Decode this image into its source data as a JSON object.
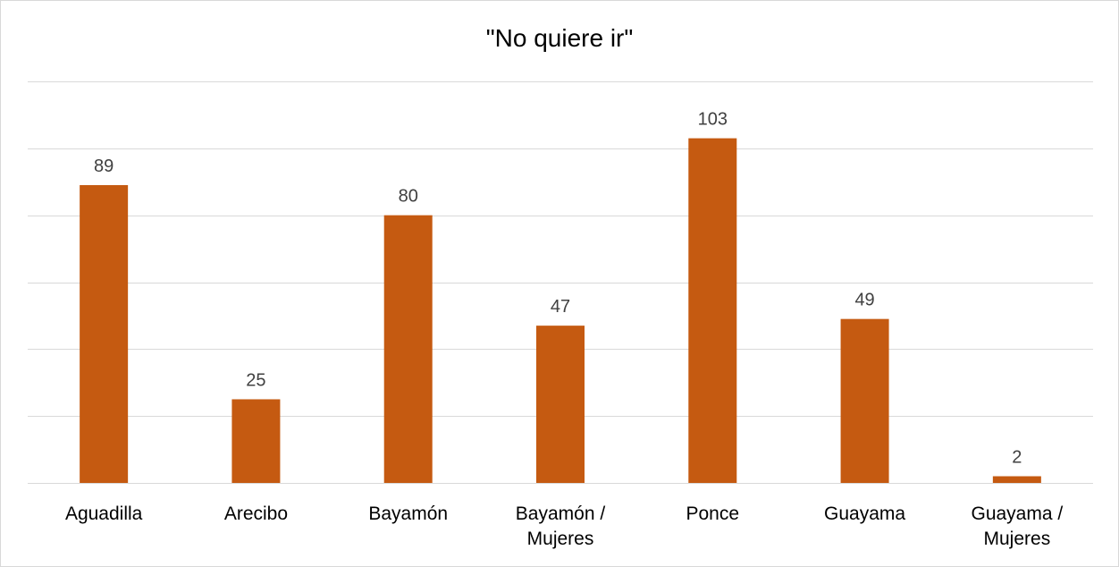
{
  "chart_data": {
    "type": "bar",
    "title": "\"No quiere ir\"",
    "categories": [
      "Aguadilla",
      "Arecibo",
      "Bayamón",
      "Bayamón / Mujeres",
      "Ponce",
      "Guayama",
      "Guayama / Mujeres"
    ],
    "tick_lines": [
      [
        "Aguadilla"
      ],
      [
        "Arecibo"
      ],
      [
        "Bayamón"
      ],
      [
        "Bayamón /",
        "Mujeres"
      ],
      [
        "Ponce"
      ],
      [
        "Guayama"
      ],
      [
        "Guayama /",
        "Mujeres"
      ]
    ],
    "series": [
      {
        "values": [
          89,
          25,
          80,
          47,
          103,
          49,
          2
        ],
        "color": "#c55a11"
      }
    ],
    "data_labels": [
      "89",
      "25",
      "80",
      "47",
      "103",
      "49",
      "2"
    ],
    "ylim": [
      0,
      120
    ],
    "gridline_step": 20,
    "y_axis_labels_visible": false,
    "grid": true,
    "legend": "none",
    "xlabel": "",
    "ylabel": ""
  }
}
